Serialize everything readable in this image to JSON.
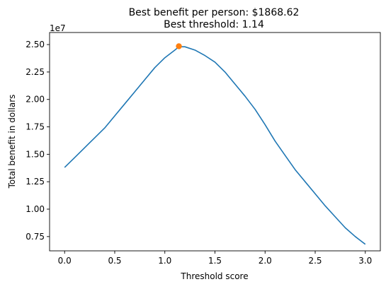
{
  "chart_data": {
    "type": "line",
    "title": "Best benefit per person: $1868.62",
    "subtitle": "Best threshold: 1.14",
    "xlabel": "Threshold score",
    "ylabel": "Total benefit in dollars",
    "y_offset_label": "1e7",
    "y_scale_factor": 10000000,
    "xlim": [
      -0.15,
      3.15
    ],
    "ylim": [
      0.62,
      2.61
    ],
    "x_ticks": [
      0.0,
      0.5,
      1.0,
      1.5,
      2.0,
      2.5,
      3.0
    ],
    "x_tick_labels": [
      "0.0",
      "0.5",
      "1.0",
      "1.5",
      "2.0",
      "2.5",
      "3.0"
    ],
    "y_ticks": [
      0.75,
      1.0,
      1.25,
      1.5,
      1.75,
      2.0,
      2.25,
      2.5
    ],
    "y_tick_labels": [
      "0.75",
      "1.00",
      "1.25",
      "1.50",
      "1.75",
      "2.00",
      "2.25",
      "2.50"
    ],
    "grid": false,
    "series": [
      {
        "color": "#1f77b4",
        "x": [
          0.0,
          0.1,
          0.2,
          0.3,
          0.4,
          0.5,
          0.6,
          0.7,
          0.8,
          0.9,
          1.0,
          1.1,
          1.14,
          1.2,
          1.3,
          1.4,
          1.5,
          1.6,
          1.7,
          1.8,
          1.9,
          2.0,
          2.1,
          2.2,
          2.3,
          2.4,
          2.5,
          2.6,
          2.7,
          2.8,
          2.9,
          3.0
        ],
        "y": [
          1.38,
          1.47,
          1.56,
          1.65,
          1.74,
          1.85,
          1.96,
          2.07,
          2.18,
          2.29,
          2.38,
          2.45,
          2.48,
          2.48,
          2.45,
          2.4,
          2.34,
          2.25,
          2.14,
          2.03,
          1.91,
          1.77,
          1.62,
          1.49,
          1.36,
          1.25,
          1.14,
          1.03,
          0.93,
          0.83,
          0.75,
          0.68
        ]
      }
    ],
    "highlight_point": {
      "x": 1.14,
      "y": 2.485,
      "color": "#ff7f0e"
    }
  }
}
